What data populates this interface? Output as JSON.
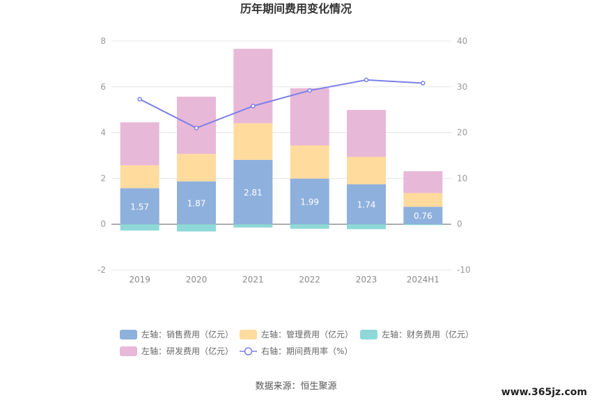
{
  "chart_data": {
    "type": "bar",
    "title": "历年期间费用变化情况",
    "categories": [
      "2019",
      "2020",
      "2021",
      "2022",
      "2023",
      "2024H1"
    ],
    "left_axis": {
      "ticks": [
        "-2",
        "0",
        "2",
        "4",
        "6",
        "8"
      ],
      "ylim": [
        -2,
        8
      ]
    },
    "right_axis": {
      "ticks": [
        "-10",
        "0",
        "10",
        "20",
        "30",
        "40"
      ],
      "ylim": [
        -10,
        40
      ]
    },
    "stacked": true,
    "series": [
      {
        "name": "左轴：销售费用（亿元）",
        "axis": "left",
        "kind": "bar",
        "color": "#8eb0dc",
        "values": [
          1.57,
          1.87,
          2.81,
          1.99,
          1.74,
          0.76
        ],
        "labels": [
          "1.57",
          "1.87",
          "2.81",
          "1.99",
          "1.74",
          "0.76"
        ]
      },
      {
        "name": "左轴：管理费用（亿元）",
        "axis": "left",
        "kind": "bar",
        "color": "#ffdb9e",
        "values": [
          1.0,
          1.2,
          1.6,
          1.45,
          1.2,
          0.6
        ]
      },
      {
        "name": "左轴：财务费用（亿元）",
        "axis": "left",
        "kind": "bar",
        "color": "#8fd8d8",
        "values": [
          -0.28,
          -0.32,
          -0.15,
          -0.2,
          -0.22,
          -0.04
        ]
      },
      {
        "name": "左轴：研发费用（亿元）",
        "axis": "left",
        "kind": "bar",
        "color": "#e8b8d8",
        "values": [
          1.88,
          2.5,
          3.25,
          2.5,
          2.05,
          0.95
        ]
      },
      {
        "name": "右轴：期间费用率（%）",
        "axis": "right",
        "kind": "line",
        "color": "#7b7fe8",
        "values": [
          27.3,
          21.0,
          25.8,
          29.2,
          31.5,
          30.8
        ]
      }
    ],
    "grid": true,
    "legend_position": "bottom"
  },
  "footer": {
    "source": "数据来源：恒生聚源"
  },
  "watermark": "www.365jz.com"
}
